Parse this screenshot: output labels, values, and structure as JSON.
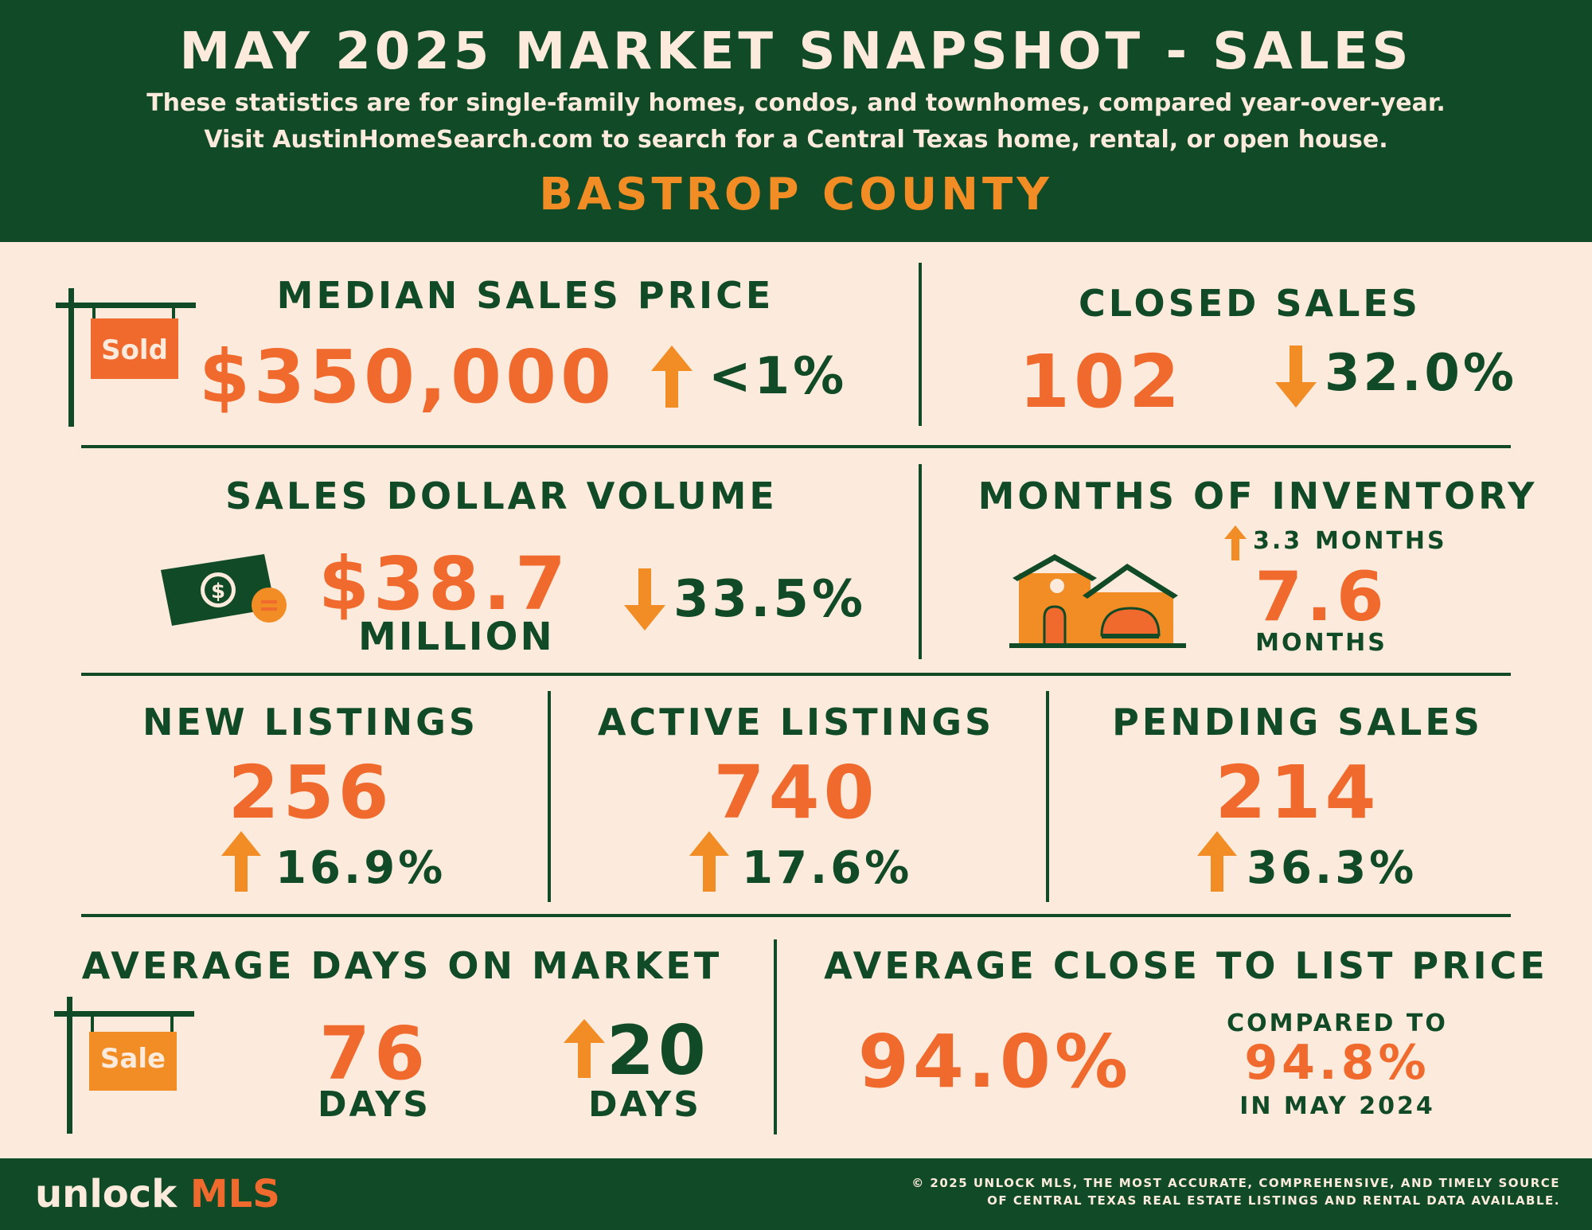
{
  "header": {
    "title": "MAY 2025 MARKET SNAPSHOT - SALES",
    "subtitle_line1": "These statistics are for single-family homes, condos, and townhomes, compared year-over-year.",
    "subtitle_line2": "Visit AustinHomeSearch.com to search for a Central Texas home, rental, or open house.",
    "county": "BASTROP COUNTY"
  },
  "median_sales_price": {
    "label": "MEDIAN SALES PRICE",
    "sign_text": "Sold",
    "value": "$350,000",
    "change": "<1%",
    "direction": "up"
  },
  "closed_sales": {
    "label": "CLOSED SALES",
    "value": "102",
    "change": "32.0%",
    "direction": "down"
  },
  "sales_dollar_volume": {
    "label": "SALES DOLLAR VOLUME",
    "value": "$38.7",
    "unit": "MILLION",
    "change": "33.5%",
    "direction": "down"
  },
  "months_of_inventory": {
    "label": "MONTHS OF INVENTORY",
    "change_value": "3.3",
    "change_unit": "MONTHS",
    "direction": "up",
    "value": "7.6",
    "unit": "MONTHS"
  },
  "new_listings": {
    "label": "NEW LISTINGS",
    "value": "256",
    "change": "16.9%",
    "direction": "up"
  },
  "active_listings": {
    "label": "ACTIVE LISTINGS",
    "value": "740",
    "change": "17.6%",
    "direction": "up"
  },
  "pending_sales": {
    "label": "PENDING SALES",
    "value": "214",
    "change": "36.3%",
    "direction": "up"
  },
  "average_days_on_market": {
    "label": "AVERAGE DAYS ON MARKET",
    "sign_text": "Sale",
    "value": "76",
    "unit": "DAYS",
    "change": "20",
    "change_unit": "DAYS",
    "direction": "up"
  },
  "average_close_to_list": {
    "label": "AVERAGE CLOSE TO LIST PRICE",
    "value": "94.0%",
    "compare_label": "COMPARED TO",
    "compare_value": "94.8%",
    "compare_period": "IN MAY 2024"
  },
  "footer": {
    "logo_word": "unlock",
    "logo_mls": "MLS",
    "copyright_line1": "© 2025 UNLOCK MLS, THE MOST ACCURATE, COMPREHENSIVE, AND TIMELY SOURCE",
    "copyright_line2": "OF CENTRAL TEXAS REAL ESTATE LISTINGS AND RENTAL DATA AVAILABLE."
  },
  "colors": {
    "dark_green": "#114a27",
    "cream": "#fcebdd",
    "orange_red": "#f06a2e",
    "amber": "#f28c24"
  },
  "icons": [
    "sold-sign-icon",
    "money-icon",
    "house-icon",
    "sale-sign-icon",
    "up-arrow-icon",
    "down-arrow-icon"
  ]
}
